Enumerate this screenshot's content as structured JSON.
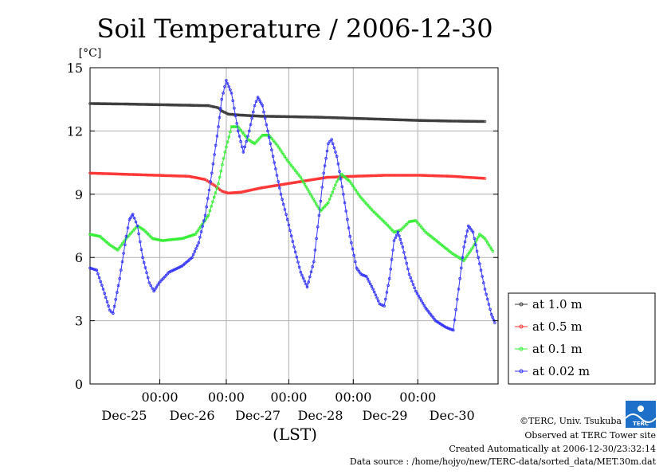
{
  "chart_data": {
    "type": "line",
    "title": "Soil Temperature / 2006-12-30",
    "ylabel": "[°C]",
    "xlabel": "(LST)",
    "ylim": [
      0,
      15
    ],
    "xlim": [
      0,
      6
    ],
    "y_ticks": [
      "0",
      "3",
      "6",
      "9",
      "12",
      "15"
    ],
    "x_time_ticks": [
      "00:00",
      "00:00",
      "00:00",
      "00:00",
      "00:00"
    ],
    "x_date_labels": [
      "Dec-25",
      "Dec-26",
      "Dec-27",
      "Dec-28",
      "Dec-29",
      "Dec-30"
    ],
    "grid": true,
    "legend_position": "right",
    "series": [
      {
        "name": "at 1.0 m",
        "color": "#3a3a3a",
        "points": [
          [
            0,
            13.3
          ],
          [
            0.5,
            13.28
          ],
          [
            1,
            13.25
          ],
          [
            1.5,
            13.22
          ],
          [
            1.8,
            13.2
          ],
          [
            1.95,
            13.1
          ],
          [
            2.0,
            12.95
          ],
          [
            2.1,
            12.8
          ],
          [
            2.3,
            12.75
          ],
          [
            2.6,
            12.7
          ],
          [
            3.0,
            12.68
          ],
          [
            3.5,
            12.65
          ],
          [
            4.0,
            12.6
          ],
          [
            4.5,
            12.55
          ],
          [
            5.0,
            12.5
          ],
          [
            5.5,
            12.47
          ],
          [
            6.0,
            12.45
          ]
        ]
      },
      {
        "name": "at 0.5 m",
        "color": "#ff3333",
        "points": [
          [
            0,
            10.0
          ],
          [
            0.5,
            9.95
          ],
          [
            1,
            9.9
          ],
          [
            1.5,
            9.85
          ],
          [
            1.75,
            9.7
          ],
          [
            1.9,
            9.4
          ],
          [
            2.0,
            9.15
          ],
          [
            2.1,
            9.05
          ],
          [
            2.3,
            9.1
          ],
          [
            2.6,
            9.3
          ],
          [
            3.0,
            9.5
          ],
          [
            3.3,
            9.65
          ],
          [
            3.6,
            9.8
          ],
          [
            4.0,
            9.85
          ],
          [
            4.5,
            9.9
          ],
          [
            5.0,
            9.9
          ],
          [
            5.5,
            9.85
          ],
          [
            6.0,
            9.75
          ]
        ]
      },
      {
        "name": "at 0.1 m",
        "color": "#33ee33",
        "points": [
          [
            0,
            7.1
          ],
          [
            0.15,
            7.0
          ],
          [
            0.3,
            6.6
          ],
          [
            0.42,
            6.35
          ],
          [
            0.55,
            6.9
          ],
          [
            0.72,
            7.5
          ],
          [
            0.82,
            7.3
          ],
          [
            0.95,
            6.9
          ],
          [
            1.1,
            6.8
          ],
          [
            1.4,
            6.9
          ],
          [
            1.6,
            7.1
          ],
          [
            1.8,
            8.0
          ],
          [
            1.95,
            9.5
          ],
          [
            2.05,
            11.0
          ],
          [
            2.15,
            12.2
          ],
          [
            2.25,
            12.2
          ],
          [
            2.4,
            11.6
          ],
          [
            2.5,
            11.4
          ],
          [
            2.62,
            11.8
          ],
          [
            2.72,
            11.8
          ],
          [
            2.85,
            11.3
          ],
          [
            3.0,
            10.6
          ],
          [
            3.2,
            9.8
          ],
          [
            3.35,
            9.0
          ],
          [
            3.5,
            8.2
          ],
          [
            3.62,
            8.6
          ],
          [
            3.75,
            9.6
          ],
          [
            3.82,
            9.95
          ],
          [
            3.95,
            9.6
          ],
          [
            4.1,
            8.9
          ],
          [
            4.3,
            8.2
          ],
          [
            4.5,
            7.6
          ],
          [
            4.62,
            7.2
          ],
          [
            4.72,
            7.3
          ],
          [
            4.85,
            7.7
          ],
          [
            4.95,
            7.75
          ],
          [
            5.1,
            7.2
          ],
          [
            5.3,
            6.7
          ],
          [
            5.5,
            6.2
          ],
          [
            5.68,
            5.85
          ],
          [
            5.82,
            6.5
          ],
          [
            5.92,
            7.1
          ],
          [
            6.0,
            6.9
          ],
          [
            6.12,
            6.3
          ]
        ]
      },
      {
        "name": "at 0.02 m",
        "color": "#3333ff",
        "points": [
          [
            0,
            5.5
          ],
          [
            0.1,
            5.4
          ],
          [
            0.2,
            4.5
          ],
          [
            0.3,
            3.5
          ],
          [
            0.35,
            3.35
          ],
          [
            0.45,
            5.0
          ],
          [
            0.55,
            7.0
          ],
          [
            0.6,
            7.8
          ],
          [
            0.65,
            8.05
          ],
          [
            0.72,
            7.5
          ],
          [
            0.8,
            6.0
          ],
          [
            0.9,
            4.8
          ],
          [
            0.97,
            4.4
          ],
          [
            1.05,
            4.8
          ],
          [
            1.2,
            5.3
          ],
          [
            1.4,
            5.6
          ],
          [
            1.55,
            6.0
          ],
          [
            1.65,
            6.7
          ],
          [
            1.75,
            8.0
          ],
          [
            1.85,
            10.0
          ],
          [
            1.95,
            12.2
          ],
          [
            2.0,
            13.5
          ],
          [
            2.07,
            14.4
          ],
          [
            2.15,
            13.8
          ],
          [
            2.25,
            12.0
          ],
          [
            2.33,
            11.0
          ],
          [
            2.42,
            12.0
          ],
          [
            2.5,
            13.2
          ],
          [
            2.55,
            13.6
          ],
          [
            2.62,
            13.2
          ],
          [
            2.7,
            12.0
          ],
          [
            2.8,
            10.5
          ],
          [
            2.9,
            9.0
          ],
          [
            3.0,
            7.8
          ],
          [
            3.1,
            6.5
          ],
          [
            3.2,
            5.3
          ],
          [
            3.3,
            4.6
          ],
          [
            3.4,
            5.8
          ],
          [
            3.48,
            8.0
          ],
          [
            3.55,
            10.0
          ],
          [
            3.62,
            11.4
          ],
          [
            3.67,
            11.6
          ],
          [
            3.75,
            10.8
          ],
          [
            3.85,
            9.0
          ],
          [
            3.95,
            7.0
          ],
          [
            4.05,
            5.5
          ],
          [
            4.12,
            5.2
          ],
          [
            4.2,
            5.1
          ],
          [
            4.3,
            4.5
          ],
          [
            4.4,
            3.8
          ],
          [
            4.47,
            3.7
          ],
          [
            4.55,
            5.0
          ],
          [
            4.62,
            6.8
          ],
          [
            4.68,
            7.2
          ],
          [
            4.75,
            6.5
          ],
          [
            4.85,
            5.2
          ],
          [
            4.95,
            4.4
          ],
          [
            5.1,
            3.6
          ],
          [
            5.25,
            3.0
          ],
          [
            5.4,
            2.7
          ],
          [
            5.52,
            2.55
          ],
          [
            5.6,
            4.5
          ],
          [
            5.68,
            6.5
          ],
          [
            5.75,
            7.5
          ],
          [
            5.82,
            7.2
          ],
          [
            5.9,
            6.0
          ],
          [
            6.0,
            4.5
          ],
          [
            6.1,
            3.3
          ],
          [
            6.15,
            2.9
          ]
        ]
      }
    ]
  },
  "footer": {
    "copyright": "©TERC, Univ. Tsukuba",
    "site": "Observed at TERC Tower site",
    "created": "Created Automatically at 2006-12-30/23:32:14",
    "source": "Data source : /home/hojyo/new/TERC-data/sorted_data/MET.30m.dat"
  },
  "logo": {
    "text": "TERC",
    "color": "#1e6fc8"
  }
}
